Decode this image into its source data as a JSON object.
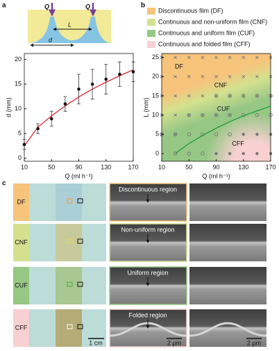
{
  "panels": [
    "a",
    "b",
    "c"
  ],
  "schematic": {
    "flow": "Q",
    "spacing": "L",
    "diameter": "d"
  },
  "chart_data": [
    {
      "type": "scatter",
      "x_label": "Q (ml h⁻¹)",
      "y_label": "d (mm)",
      "x": [
        10,
        30,
        50,
        70,
        90,
        110,
        130,
        150,
        170
      ],
      "values": [
        2.8,
        6,
        8,
        11,
        14,
        15,
        16,
        17,
        17.5
      ],
      "errors": [
        1,
        1,
        1.5,
        1.5,
        3,
        3,
        3,
        2.5,
        2
      ],
      "color": "#111111",
      "fit_x": [
        10,
        30,
        50,
        70,
        90,
        110,
        130,
        150,
        170
      ],
      "fit_values": [
        2.5,
        6.3,
        8.6,
        10.6,
        12.4,
        14,
        15.4,
        16.7,
        17.9
      ],
      "fit_color": "#e0262b",
      "xlim": [
        10,
        170
      ],
      "xticks": [
        10,
        50,
        90,
        130,
        170
      ],
      "ylim": [
        -0.6,
        21.2
      ],
      "yticks": [
        0,
        5,
        10,
        15,
        20
      ]
    },
    {
      "type": "scatter",
      "x_label": "Q (ml h⁻¹)",
      "y_label": "L (mm)",
      "series": [
        {
          "name": "Discontinuous film (DF)",
          "color": "#f7c47c",
          "marker": "cross",
          "x": [
            10,
            30,
            50,
            70,
            90,
            110,
            130,
            150,
            170,
            10,
            30,
            50,
            70,
            90,
            110,
            130,
            150,
            170,
            10,
            30,
            50,
            70,
            10,
            30
          ],
          "values": [
            25,
            25,
            25,
            25,
            25,
            25,
            25,
            25,
            25,
            20,
            20,
            20,
            20,
            20,
            20,
            20,
            20,
            20,
            15,
            15,
            15,
            15,
            10,
            10
          ]
        },
        {
          "name": "Continuous and non-uniform film (CNF)",
          "color": "#d3e18f",
          "marker": "crossed-circle",
          "x": [
            90,
            110,
            130,
            150,
            170,
            50,
            70,
            90,
            110,
            10,
            30
          ],
          "values": [
            15,
            15,
            15,
            15,
            15,
            10,
            10,
            10,
            10,
            5,
            5
          ]
        },
        {
          "name": "Continuous and uniform film (CUF)",
          "color": "#97c785",
          "marker": "circle",
          "x": [
            130,
            150,
            170,
            50,
            70,
            90,
            110,
            30,
            50,
            70
          ],
          "values": [
            10,
            10,
            10,
            5,
            5,
            5,
            5,
            0,
            0,
            0
          ]
        },
        {
          "name": "Continuous and folded film (CFF)",
          "color": "#f8d0d2",
          "marker": "dot",
          "x": [
            130,
            150,
            170,
            90,
            110,
            130,
            150,
            170
          ],
          "values": [
            5,
            5,
            5,
            0,
            0,
            0,
            0,
            0
          ]
        }
      ],
      "annotations": [
        "DF",
        "CNF",
        "CUF",
        "CFF"
      ],
      "fit_x": [
        30,
        50,
        70,
        90,
        110,
        130,
        150,
        170
      ],
      "fit_values": [
        0,
        2.6,
        4.7,
        6.6,
        8.3,
        9.8,
        11.1,
        12.3
      ],
      "fit_color": "#1a9b3c",
      "xlim": [
        10,
        170
      ],
      "xticks": [
        10,
        50,
        90,
        130,
        170
      ],
      "ylim": [
        -2,
        26
      ],
      "yticks": [
        0,
        5,
        10,
        15,
        20,
        25
      ]
    }
  ],
  "panel_c": {
    "rows": [
      {
        "label": "DF",
        "region": "Discontinuous region",
        "stripe": "#a8cdd6",
        "marker_color": "#f0a030"
      },
      {
        "label": "CNF",
        "region": "Non-uniform region",
        "stripe": "#c9c896",
        "marker_color": "#e6d84a"
      },
      {
        "label": "CUF",
        "region": "Uniform region",
        "stripe": "#a6c488",
        "marker_color": "#3fae3f"
      },
      {
        "label": "CFF",
        "region": "Folded region",
        "stripe": "#b2a56c",
        "marker_color": "#ffffff"
      }
    ],
    "scale_optical": "1 cm",
    "scale_sem": "2 μm"
  }
}
